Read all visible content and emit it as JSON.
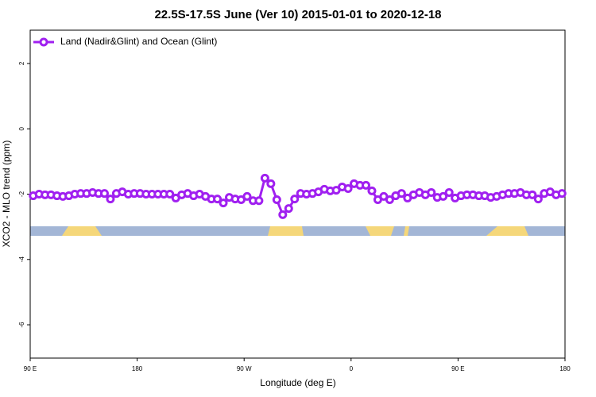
{
  "chart_data": {
    "type": "line",
    "title": "22.5S-17.5S June (Ver 10)   2015-01-01 to 2020-12-18",
    "x_label": "Longitude (deg E)",
    "y_label": "XCO2 - MLO trend (ppm)",
    "x": [
      92.5,
      97.5,
      102.5,
      107.5,
      112.5,
      117.5,
      122.5,
      127.5,
      132.5,
      137.5,
      142.5,
      147.5,
      152.5,
      157.5,
      162.5,
      167.5,
      172.5,
      177.5,
      182.5,
      187.5,
      192.5,
      197.5,
      202.5,
      207.5,
      212.5,
      217.5,
      222.5,
      227.5,
      232.5,
      237.5,
      242.5,
      247.5,
      252.5,
      257.5,
      262.5,
      267.5,
      272.5,
      277.5,
      282.5,
      287.5,
      292.5,
      297.5,
      302.5,
      307.5,
      312.5,
      317.5,
      322.5,
      327.5,
      332.5,
      337.5,
      342.5,
      347.5,
      352.5,
      357.5,
      362.5,
      367.5,
      372.5,
      377.5,
      382.5,
      387.5,
      392.5,
      397.5,
      402.5,
      407.5,
      412.5,
      417.5,
      422.5,
      427.5,
      432.5,
      437.5,
      442.5,
      447.5,
      452.5,
      457.5,
      462.5,
      467.5,
      472.5,
      477.5,
      482.5,
      487.5,
      492.5,
      497.5,
      502.5,
      507.5,
      512.5,
      517.5,
      522.5,
      527.5,
      532.5,
      537.5
    ],
    "series": [
      {
        "name": "Land (Nadir&Glint) and Ocean (Glint)",
        "color": "#a020f0",
        "values": [
          -2.05,
          -2.0,
          -2.02,
          -2.02,
          -2.05,
          -2.07,
          -2.05,
          -2.0,
          -1.98,
          -1.98,
          -1.95,
          -1.98,
          -1.98,
          -2.15,
          -1.98,
          -1.93,
          -2.0,
          -1.98,
          -1.98,
          -2.0,
          -2.0,
          -2.0,
          -2.0,
          -2.0,
          -2.12,
          -2.02,
          -1.98,
          -2.05,
          -2.0,
          -2.07,
          -2.15,
          -2.15,
          -2.27,
          -2.1,
          -2.15,
          -2.17,
          -2.07,
          -2.2,
          -2.2,
          -1.51,
          -1.68,
          -2.17,
          -2.63,
          -2.44,
          -2.15,
          -1.98,
          -2.0,
          -1.98,
          -1.93,
          -1.85,
          -1.9,
          -1.88,
          -1.78,
          -1.83,
          -1.68,
          -1.73,
          -1.73,
          -1.9,
          -2.17,
          -2.07,
          -2.17,
          -2.05,
          -1.98,
          -2.12,
          -2.02,
          -1.95,
          -2.02,
          -1.95,
          -2.1,
          -2.07,
          -1.95,
          -2.12,
          -2.05,
          -2.02,
          -2.02,
          -2.05,
          -2.05,
          -2.1,
          -2.07,
          -2.02,
          -1.98,
          -1.98,
          -1.95,
          -2.02,
          -2.02,
          -2.15,
          -1.98,
          -1.93,
          -2.02,
          -1.98
        ]
      }
    ],
    "xlim": [
      90,
      540
    ],
    "ylim": [
      -7.02,
      3.02
    ],
    "xticks": [
      {
        "value": 90,
        "label": "90 E"
      },
      180,
      {
        "value": 270,
        "label": "90 W"
      },
      {
        "value": 360,
        "label": "0"
      },
      {
        "value": 450,
        "label": "90 E"
      },
      {
        "value": 540,
        "label": "180"
      }
    ],
    "yticks": [
      -6,
      -4,
      -2,
      0,
      2
    ],
    "legend": "top-left"
  }
}
